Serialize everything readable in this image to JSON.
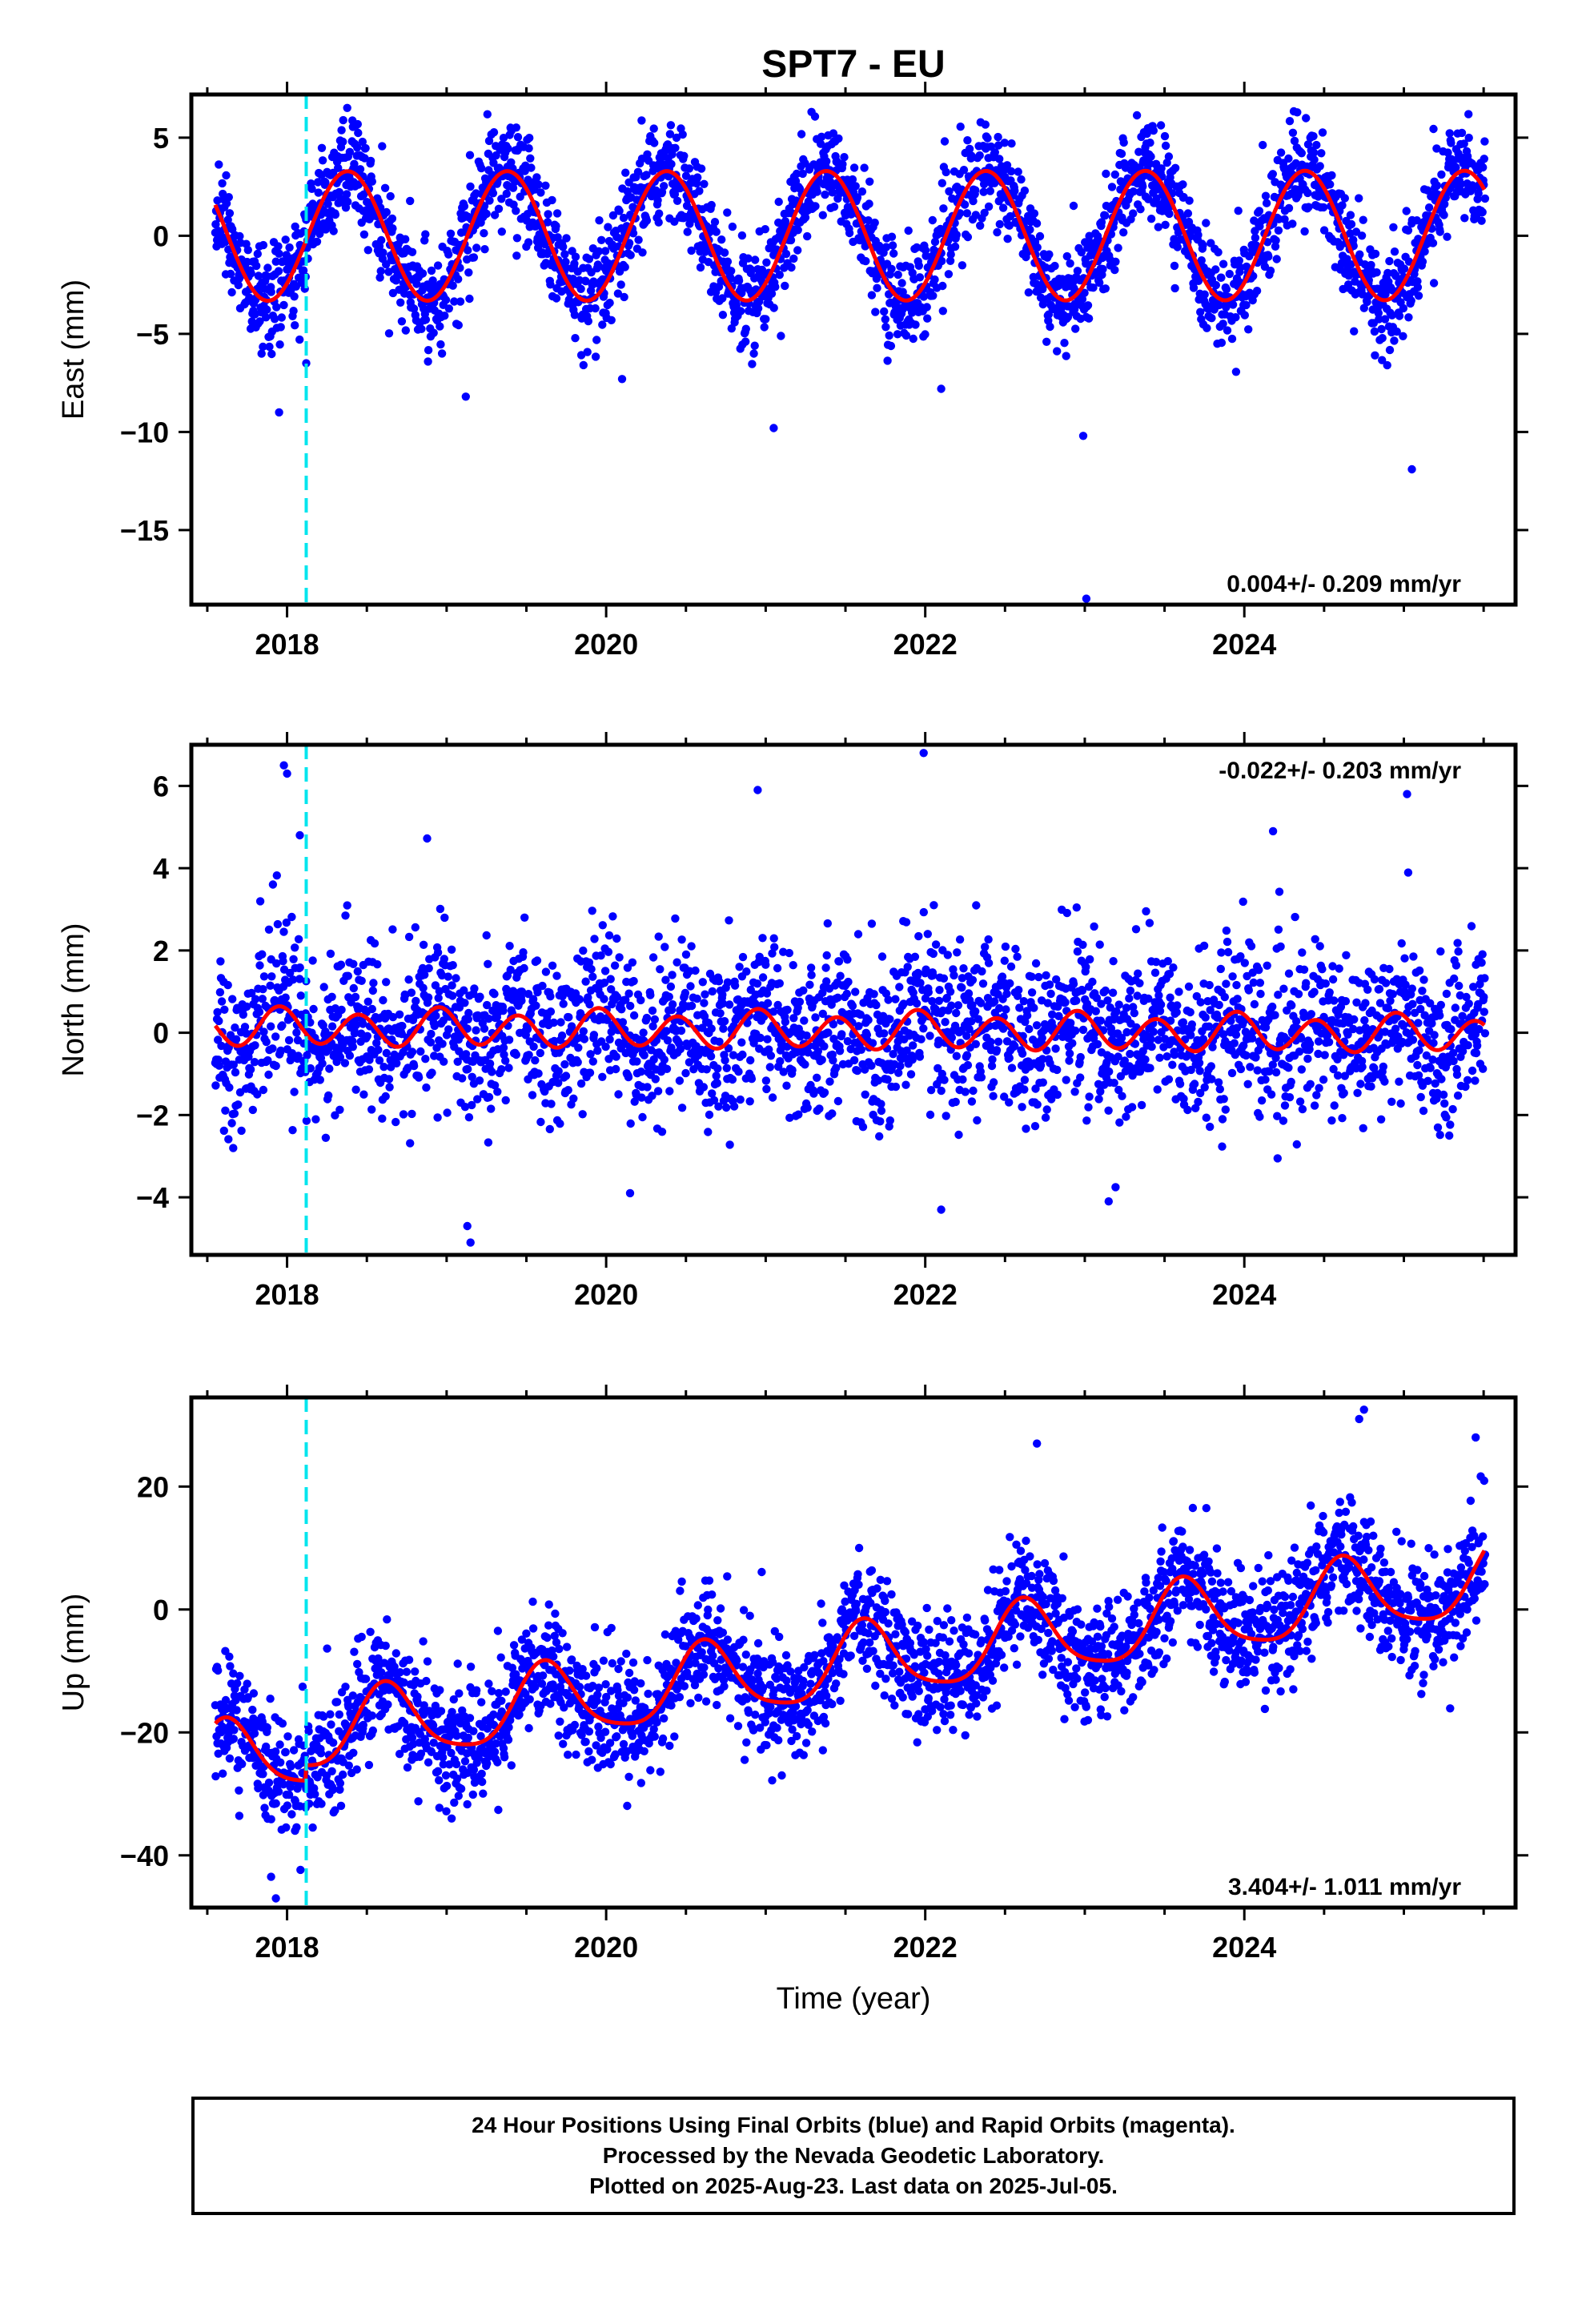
{
  "title": "SPT7 - EU",
  "xlabel": "Time (year)",
  "colors": {
    "points": "#0000ff",
    "model": "#ff0000",
    "event_line": "#00e5ee",
    "frame": "#000000"
  },
  "caption": {
    "line1": "24 Hour Positions Using Final Orbits (blue) and Rapid Orbits (magenta).",
    "line2": "Processed by the Nevada Geodetic Laboratory.",
    "line3": "Plotted on 2025-Aug-23. Last data on 2025-Jul-05."
  },
  "chart_data": [
    {
      "type": "scatter",
      "component": "East",
      "ylabel": "East (mm)",
      "xlim": [
        2017.4,
        2025.7
      ],
      "ylim": [
        -18.8,
        7.2
      ],
      "x_ticks": [
        2018,
        2020,
        2022,
        2024
      ],
      "y_ticks": [
        5,
        0,
        -5,
        -10,
        -15
      ],
      "velocity_label": "0.004+/- 0.209 mm/yr",
      "label_position": "bottom-right",
      "event_line_x": 2018.12,
      "model": {
        "trend": 0.004,
        "offset": 0.0,
        "annual_amp": 3.3,
        "annual_phase": 2018.38,
        "semi_amp": 0.0,
        "semi_phase": 0.0,
        "step_at": 2018.12,
        "step": 0.0
      },
      "scatter_sd": 1.3,
      "start": 2017.55,
      "end": 2025.51,
      "outliers": [
        [
          2017.95,
          -9.0
        ],
        [
          2019.12,
          -8.2
        ],
        [
          2020.1,
          -7.3
        ],
        [
          2021.05,
          -9.8
        ],
        [
          2022.99,
          -10.2
        ],
        [
          2023.01,
          -18.5
        ],
        [
          2025.05,
          -11.9
        ],
        [
          2018.12,
          -6.5
        ],
        [
          2022.1,
          -7.8
        ]
      ]
    },
    {
      "type": "scatter",
      "component": "North",
      "ylabel": "North (mm)",
      "xlim": [
        2017.4,
        2025.7
      ],
      "ylim": [
        -5.4,
        7.0
      ],
      "x_ticks": [
        2018,
        2020,
        2022,
        2024
      ],
      "y_ticks": [
        6,
        4,
        2,
        0,
        -2,
        -4
      ],
      "velocity_label": "-0.022+/- 0.203 mm/yr",
      "label_position": "top-right",
      "event_line_x": 2018.12,
      "model": {
        "trend": -0.022,
        "offset": 0.05,
        "annual_amp": 0.1,
        "annual_phase": 2018.0,
        "semi_amp": 0.42,
        "semi_phase": 2017.95,
        "step_at": 2018.12,
        "step": 0.0
      },
      "scatter_sd": 1.0,
      "start": 2017.55,
      "end": 2025.51,
      "outliers": [
        [
          2017.98,
          6.5
        ],
        [
          2018.0,
          6.3
        ],
        [
          2021.99,
          6.8
        ],
        [
          2025.02,
          5.8
        ],
        [
          2020.95,
          5.9
        ],
        [
          2019.15,
          -5.1
        ],
        [
          2019.13,
          -4.7
        ],
        [
          2024.18,
          4.9
        ],
        [
          2018.08,
          4.8
        ],
        [
          2020.15,
          -3.9
        ],
        [
          2022.1,
          -4.3
        ],
        [
          2023.15,
          -4.1
        ]
      ]
    },
    {
      "type": "scatter",
      "component": "Up",
      "ylabel": "Up (mm)",
      "xlim": [
        2017.4,
        2025.7
      ],
      "ylim": [
        -48.5,
        34.5
      ],
      "x_ticks": [
        2018,
        2020,
        2022,
        2024
      ],
      "y_ticks": [
        20,
        0,
        -20,
        -40
      ],
      "velocity_label": "3.404+/- 1.011 mm/yr",
      "label_position": "bottom-right",
      "event_line_x": 2018.12,
      "model": {
        "trend": 3.404,
        "offset": -11.5,
        "annual_amp": 6.0,
        "annual_phase": 2017.62,
        "semi_amp": 1.2,
        "semi_phase": 2017.6,
        "step_at": 2018.12,
        "step": 2.5
      },
      "scatter_sd": 4.8,
      "start": 2017.55,
      "end": 2025.51,
      "outliers": [
        [
          2017.93,
          -47.0
        ],
        [
          2017.9,
          -43.5
        ],
        [
          2018.05,
          -36.0
        ],
        [
          2024.75,
          32.5
        ],
        [
          2024.72,
          31.0
        ],
        [
          2022.7,
          27.0
        ],
        [
          2025.45,
          28.0
        ],
        [
          2019.08,
          -29.0
        ],
        [
          2023.02,
          -18.0
        ]
      ]
    }
  ]
}
